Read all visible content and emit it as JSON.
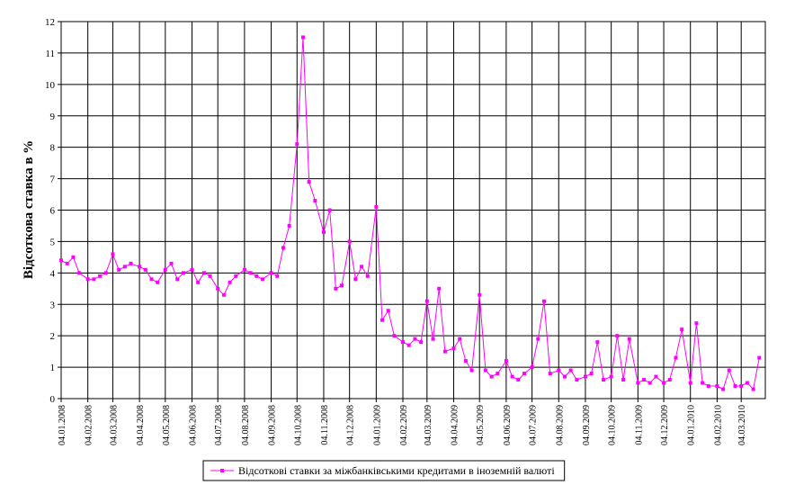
{
  "chart_data": {
    "type": "line",
    "y_label": "Відсоткова ставка в %",
    "x": [
      "04.01.2008",
      "11.01.2008",
      "18.01.2008",
      "25.01.2008",
      "04.02.2008",
      "11.02.2008",
      "18.02.2008",
      "25.02.2008",
      "04.03.2008",
      "11.03.2008",
      "18.03.2008",
      "25.03.2008",
      "04.04.2008",
      "11.04.2008",
      "18.04.2008",
      "25.04.2008",
      "04.05.2008",
      "11.05.2008",
      "18.05.2008",
      "25.05.2008",
      "04.06.2008",
      "11.06.2008",
      "18.06.2008",
      "25.06.2008",
      "04.07.2008",
      "11.07.2008",
      "18.07.2008",
      "25.07.2008",
      "04.08.2008",
      "11.08.2008",
      "18.08.2008",
      "25.08.2008",
      "04.09.2008",
      "11.09.2008",
      "18.09.2008",
      "25.09.2008",
      "04.10.2008",
      "11.10.2008",
      "18.10.2008",
      "25.10.2008",
      "04.11.2008",
      "11.11.2008",
      "18.11.2008",
      "25.11.2008",
      "04.12.2008",
      "11.12.2008",
      "18.12.2008",
      "25.12.2008",
      "04.01.2009",
      "11.01.2009",
      "18.01.2009",
      "25.01.2009",
      "04.02.2009",
      "11.02.2009",
      "18.02.2009",
      "25.02.2009",
      "04.03.2009",
      "11.03.2009",
      "18.03.2009",
      "25.03.2009",
      "04.04.2009",
      "11.04.2009",
      "18.04.2009",
      "25.04.2009",
      "04.05.2009",
      "11.05.2009",
      "18.05.2009",
      "25.05.2009",
      "04.06.2009",
      "11.06.2009",
      "18.06.2009",
      "25.06.2009",
      "04.07.2009",
      "11.07.2009",
      "18.07.2009",
      "25.07.2009",
      "04.08.2009",
      "11.08.2009",
      "18.08.2009",
      "25.08.2009",
      "04.09.2009",
      "11.09.2009",
      "18.09.2009",
      "25.09.2009",
      "04.10.2009",
      "11.10.2009",
      "18.10.2009",
      "25.10.2009",
      "04.11.2009",
      "11.11.2009",
      "18.11.2009",
      "25.11.2009",
      "04.12.2009",
      "11.12.2009",
      "18.12.2009",
      "25.12.2009",
      "04.01.2010",
      "11.01.2010",
      "18.01.2010",
      "25.01.2010",
      "04.02.2010",
      "11.02.2010",
      "18.02.2010",
      "25.02.2010",
      "04.03.2010",
      "11.03.2010",
      "18.03.2010",
      "25.03.2010"
    ],
    "series": [
      {
        "name": "Відсоткові ставки за міжбанківськими кредитами в іноземній валюті",
        "color": "#ff00ff",
        "values": [
          4.4,
          4.3,
          4.5,
          4.0,
          3.8,
          3.8,
          3.9,
          4.0,
          4.6,
          4.1,
          4.2,
          4.3,
          4.2,
          4.1,
          3.8,
          3.7,
          4.1,
          4.3,
          3.8,
          4.0,
          4.1,
          3.7,
          4.0,
          3.9,
          3.5,
          3.3,
          3.7,
          3.9,
          4.1,
          4.0,
          3.9,
          3.8,
          4.0,
          3.9,
          4.8,
          5.5,
          8.1,
          11.5,
          6.9,
          6.3,
          5.3,
          6.0,
          3.5,
          3.6,
          5.0,
          3.8,
          4.2,
          3.9,
          6.1,
          2.5,
          2.8,
          2.0,
          1.8,
          1.7,
          1.9,
          1.8,
          3.1,
          1.9,
          3.5,
          1.5,
          1.6,
          1.9,
          1.2,
          0.9,
          3.3,
          0.9,
          0.7,
          0.8,
          1.2,
          0.7,
          0.6,
          0.8,
          1.0,
          1.9,
          3.1,
          0.8,
          0.9,
          0.7,
          0.9,
          0.6,
          0.7,
          0.8,
          1.8,
          0.6,
          0.7,
          2.0,
          0.6,
          1.9,
          0.5,
          0.6,
          0.5,
          0.7,
          0.5,
          0.6,
          1.3,
          2.2,
          0.5,
          2.4,
          0.5,
          0.4,
          0.4,
          0.3,
          0.9,
          0.4,
          0.4,
          0.5,
          0.3,
          1.3
        ]
      }
    ],
    "xlim": [
      "04.01.2008",
      "01.04.2010"
    ],
    "xticks": [
      "04.01.2008",
      "04.02.2008",
      "04.03.2008",
      "04.04.2008",
      "04.05.2008",
      "04.06.2008",
      "04.07.2008",
      "04.08.2008",
      "04.09.2008",
      "04.10.2008",
      "04.11.2008",
      "04.12.2008",
      "04.01.2009",
      "04.02.2009",
      "04.03.2009",
      "04.04.2009",
      "04.05.2009",
      "04.06.2009",
      "04.07.2009",
      "04.08.2009",
      "04.09.2009",
      "04.10.2009",
      "04.11.2009",
      "04.12.2009",
      "04.01.2010",
      "04.02.2010",
      "04.03.2010"
    ],
    "ylim": [
      0,
      12
    ],
    "yticks": [
      0,
      1,
      2,
      3,
      4,
      5,
      6,
      7,
      8,
      9,
      10,
      11,
      12
    ],
    "grid": true,
    "legend": "bottom"
  }
}
